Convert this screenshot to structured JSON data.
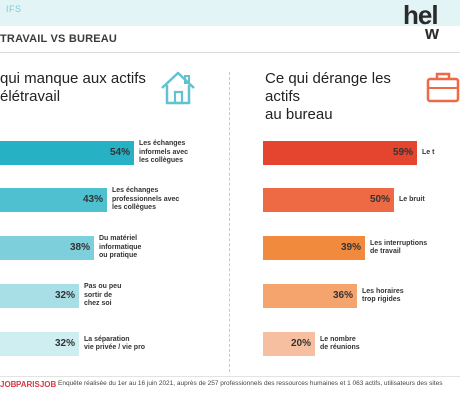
{
  "header": {
    "tagline": "IFS",
    "subtitle": "TRAVAIL VS BUREAU",
    "logo_line1": "hel",
    "logo_line2": "w"
  },
  "colors": {
    "left_bars": [
      "#27b1c4",
      "#4fc0cf",
      "#7dd0db",
      "#a8dfe6",
      "#cfeef2"
    ],
    "right_bars": [
      "#e5452f",
      "#ee6a44",
      "#f28a3e",
      "#f4a46c",
      "#f6bfa0"
    ],
    "accent_teal": "#4fc0cf",
    "accent_orange": "#ee6a44"
  },
  "chart_data": [
    {
      "type": "bar",
      "orientation": "horizontal",
      "title": "qui manque aux actifs\nélétravail",
      "categories": [
        "Les échanges informels avec les collègues",
        "Les échanges professionnels avec les collègues",
        "Du matériel informatique ou pratique",
        "Pas ou peu sortir de chez soi",
        "La séparation vie privée / vie pro"
      ],
      "category_lines": [
        [
          "Les échanges",
          "informels avec",
          "les collègues"
        ],
        [
          "Les échanges",
          "professionnels avec",
          "les collègues"
        ],
        [
          "Du matériel",
          "informatique",
          "ou pratique"
        ],
        [
          "Pas ou peu",
          "sortir de",
          "chez soi"
        ],
        [
          "La séparation",
          "vie privée / vie pro"
        ]
      ],
      "values": [
        54,
        43,
        38,
        32,
        32
      ],
      "labels": [
        "54%",
        "43%",
        "38%",
        "32%",
        "32%"
      ],
      "unit": "%",
      "xlim": [
        0,
        54
      ]
    },
    {
      "type": "bar",
      "orientation": "horizontal",
      "title": "Ce qui dérange les actifs\nau bureau",
      "categories": [
        "Le t",
        "Le bruit",
        "Les interruptions de travail",
        "Les horaires trop rigides",
        "Le nombre de réunions"
      ],
      "category_lines": [
        [
          "Le t"
        ],
        [
          "Le bruit"
        ],
        [
          "Les interruptions",
          "de travail"
        ],
        [
          "Les horaires",
          "trop rigides"
        ],
        [
          "Le nombre",
          "de réunions"
        ]
      ],
      "values": [
        59,
        50,
        39,
        36,
        20
      ],
      "labels": [
        "59%",
        "50%",
        "39%",
        "36%",
        "20%"
      ],
      "unit": "%",
      "xlim": [
        0,
        59
      ]
    }
  ],
  "footer": {
    "brand1": "JOB",
    "brand2": "PARISJOB",
    "note": "Enquête réalisée du 1er au 16 juin 2021, auprès de 257 professionnels des ressources humaines et 1 063 actifs, utilisateurs des sites"
  }
}
